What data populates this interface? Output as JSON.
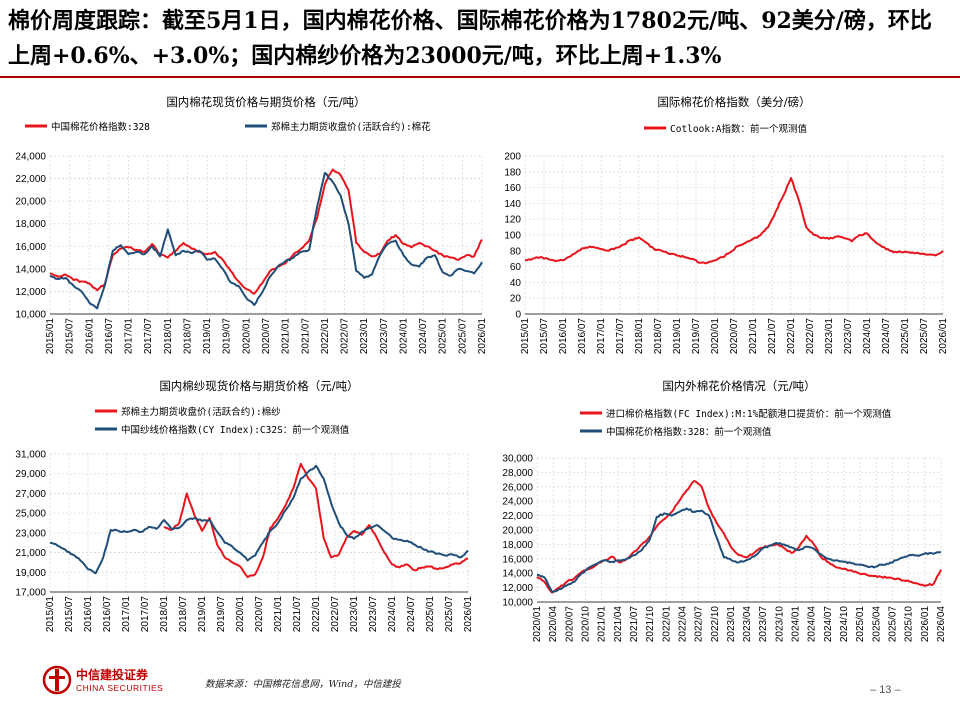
{
  "page": {
    "title": "棉价周度跟踪：截至5月1日，国内棉花价格、国际棉花价格为17802元/吨、92美分/磅，环比上周+0.6%、+3.0%；国内棉纱价格为23000元/吨，环比上周+1.3%",
    "source": "数据来源：中国棉花信息网，Wind，中信建投",
    "page_number": "13",
    "logo_zh": "中信建投证券",
    "logo_en": "CHINA SECURITIES",
    "colors": {
      "red": "#e8141b",
      "blue": "#1f4e79",
      "accent_rule": "#b00000"
    }
  },
  "chart_data": [
    {
      "type": "line",
      "title": "国内棉花现货价格与期货价格（元/吨）",
      "x_ticks": [
        "2015/01",
        "2015/07",
        "2016/01",
        "2016/07",
        "2017/01",
        "2017/07",
        "2018/01",
        "2018/07",
        "2019/01",
        "2019/07",
        "2020/01",
        "2020/07",
        "2021/01",
        "2021/07",
        "2022/01",
        "2022/07",
        "2023/01",
        "2023/07",
        "2024/01",
        "2024/07",
        "2025/01",
        "2025/07",
        "2026/01"
      ],
      "y_ticks": [
        "10,000",
        "12,000",
        "14,000",
        "16,000",
        "18,000",
        "20,000",
        "22,000",
        "24,000"
      ],
      "ylim": [
        10000,
        24000
      ],
      "series": [
        {
          "name": "中国棉花价格指数:328",
          "color": "#e8141b",
          "values": [
            13600,
            13300,
            13500,
            13000,
            12900,
            12700,
            12100,
            12700,
            15200,
            15800,
            15900,
            15700,
            15500,
            16200,
            15300,
            15000,
            15600,
            16300,
            15800,
            15500,
            15300,
            15500,
            14800,
            13800,
            12900,
            12200,
            11800,
            12700,
            13800,
            14200,
            14500,
            15300,
            15800,
            16500,
            18500,
            21500,
            22800,
            22300,
            21000,
            16300,
            15500,
            15100,
            15300,
            16500,
            17000,
            16200,
            15900,
            16300,
            16000,
            15600,
            15200,
            15000,
            14800,
            15200,
            15100,
            16600
          ]
        },
        {
          "name": "郑棉主力期货收盘价(活跃合约):棉花",
          "color": "#1f4e79",
          "values": [
            13400,
            13100,
            13200,
            12500,
            12000,
            11000,
            10500,
            12600,
            15600,
            16100,
            15300,
            15500,
            15300,
            16000,
            15100,
            17500,
            15200,
            15600,
            15400,
            15600,
            14800,
            14900,
            14000,
            12800,
            12500,
            11400,
            10800,
            11900,
            13300,
            14200,
            14700,
            15000,
            15500,
            15700,
            19500,
            22500,
            21700,
            20500,
            18000,
            13800,
            13200,
            13500,
            15200,
            16200,
            16500,
            15200,
            14400,
            14200,
            15000,
            15200,
            13700,
            13400,
            14000,
            13800,
            13600,
            14600
          ]
        }
      ]
    },
    {
      "type": "line",
      "title": "国际棉花价格指数（美分/磅）",
      "x_ticks": [
        "2015/01",
        "2015/07",
        "2016/01",
        "2016/07",
        "2017/01",
        "2017/07",
        "2018/01",
        "2018/07",
        "2019/01",
        "2019/07",
        "2020/01",
        "2020/07",
        "2021/01",
        "2021/07",
        "2022/01",
        "2022/07",
        "2023/01",
        "2023/07",
        "2024/01",
        "2024/07",
        "2025/01",
        "2025/07",
        "2026/01"
      ],
      "y_ticks": [
        "0",
        "20",
        "40",
        "60",
        "80",
        "100",
        "120",
        "140",
        "160",
        "180",
        "200"
      ],
      "ylim": [
        0,
        200
      ],
      "series": [
        {
          "name": "Cotlook:A指数：前一个观测值",
          "color": "#e8141b",
          "values": [
            68,
            70,
            72,
            70,
            67,
            68,
            73,
            80,
            84,
            85,
            82,
            80,
            84,
            88,
            94,
            97,
            90,
            82,
            80,
            76,
            74,
            72,
            70,
            65,
            65,
            68,
            72,
            78,
            86,
            90,
            95,
            100,
            110,
            130,
            150,
            172,
            145,
            110,
            100,
            96,
            95,
            98,
            96,
            92,
            100,
            102,
            92,
            85,
            80,
            78,
            79,
            78,
            76,
            75,
            74,
            80
          ]
        }
      ]
    },
    {
      "type": "line",
      "title": "国内棉纱现货价格与期货价格（元/吨）",
      "x_ticks": [
        "2015/01",
        "2015/07",
        "2016/01",
        "2016/07",
        "2017/01",
        "2017/07",
        "2018/01",
        "2018/07",
        "2019/01",
        "2019/07",
        "2020/01",
        "2020/07",
        "2021/01",
        "2021/07",
        "2022/01",
        "2022/07",
        "2023/01",
        "2023/07",
        "2024/01",
        "2024/07",
        "2025/01",
        "2025/07",
        "2026/01"
      ],
      "y_ticks": [
        "17,000",
        "19,000",
        "21,000",
        "23,000",
        "25,000",
        "27,000",
        "29,000",
        "31,000"
      ],
      "ylim": [
        17000,
        31000
      ],
      "series": [
        {
          "name": "郑棉主力期货收盘价(活跃合约):棉纱",
          "color": "#e8141b",
          "values": [
            null,
            null,
            null,
            null,
            null,
            null,
            null,
            null,
            null,
            null,
            null,
            null,
            null,
            null,
            null,
            23600,
            23300,
            24000,
            27000,
            24800,
            23200,
            24500,
            21800,
            20500,
            20000,
            19600,
            18500,
            18800,
            20500,
            23500,
            24500,
            25800,
            27500,
            30000,
            28500,
            27500,
            22500,
            20500,
            20800,
            22500,
            23200,
            22800,
            23800,
            22500,
            21000,
            19800,
            19500,
            19800,
            19200,
            19500,
            19600,
            19300,
            19500,
            19800,
            19900,
            20400
          ]
        },
        {
          "name": "中国纱线价格指数(CY Index):C32S：前一个观测值",
          "color": "#1f4e79",
          "values": [
            22000,
            21700,
            21300,
            20800,
            20200,
            19300,
            18900,
            20500,
            23300,
            23200,
            23100,
            23300,
            23100,
            23600,
            23400,
            24300,
            23400,
            23500,
            24300,
            24500,
            24200,
            24300,
            23100,
            22000,
            21600,
            21000,
            20200,
            20700,
            22000,
            23200,
            24000,
            25300,
            26500,
            28500,
            29200,
            29800,
            28500,
            26000,
            24000,
            22800,
            22400,
            23100,
            23500,
            23800,
            23200,
            22500,
            22300,
            22200,
            21800,
            21400,
            21100,
            20900,
            20700,
            20800,
            20500,
            21200
          ]
        }
      ]
    },
    {
      "type": "line",
      "title": "国内外棉花价格情况（元/吨）",
      "x_ticks": [
        "2020/01",
        "2020/04",
        "2020/07",
        "2020/10",
        "2021/01",
        "2021/04",
        "2021/07",
        "2021/10",
        "2022/01",
        "2022/04",
        "2022/07",
        "2022/10",
        "2023/01",
        "2023/04",
        "2023/07",
        "2023/10",
        "2024/01",
        "2024/04",
        "2024/07",
        "2024/10",
        "2025/01",
        "2025/04",
        "2025/07",
        "2025/10",
        "2026/01",
        "2026/04"
      ],
      "y_ticks": [
        "10,000",
        "12,000",
        "14,000",
        "16,000",
        "18,000",
        "20,000",
        "22,000",
        "24,000",
        "26,000",
        "28,000",
        "30,000"
      ],
      "ylim": [
        10000,
        30000
      ],
      "series": [
        {
          "name": "进口棉价格指数(FC Index):M:1%配额港口提货价：前一个观测值",
          "color": "#e8141b",
          "values": [
            13500,
            12800,
            11300,
            12000,
            12800,
            13300,
            14200,
            14600,
            15200,
            15800,
            16300,
            15500,
            16000,
            17000,
            18000,
            19000,
            20500,
            21500,
            22500,
            24000,
            25500,
            26800,
            26000,
            23000,
            21000,
            19500,
            17500,
            16500,
            16200,
            16800,
            17500,
            17800,
            18000,
            17500,
            16800,
            17600,
            19200,
            18000,
            16200,
            15500,
            14800,
            14600,
            14400,
            14000,
            13800,
            13600,
            13500,
            13400,
            13200,
            13000,
            12800,
            12500,
            12300,
            12500,
            14500
          ]
        },
        {
          "name": "中国棉花价格指数:328：前一个观测值",
          "color": "#1f4e79",
          "values": [
            13800,
            13400,
            11400,
            11800,
            12300,
            12800,
            14000,
            14800,
            15300,
            15800,
            15600,
            15800,
            16000,
            16500,
            17200,
            18500,
            21800,
            22300,
            22000,
            22500,
            23000,
            22500,
            22700,
            22000,
            19000,
            16200,
            15800,
            15500,
            15800,
            16300,
            17300,
            17800,
            18200,
            18000,
            17600,
            17200,
            17700,
            17400,
            16600,
            16000,
            15800,
            15600,
            15400,
            15200,
            15000,
            14800,
            15200,
            15300,
            15800,
            16200,
            16500,
            16400,
            16800,
            16700,
            16900
          ]
        }
      ]
    }
  ]
}
